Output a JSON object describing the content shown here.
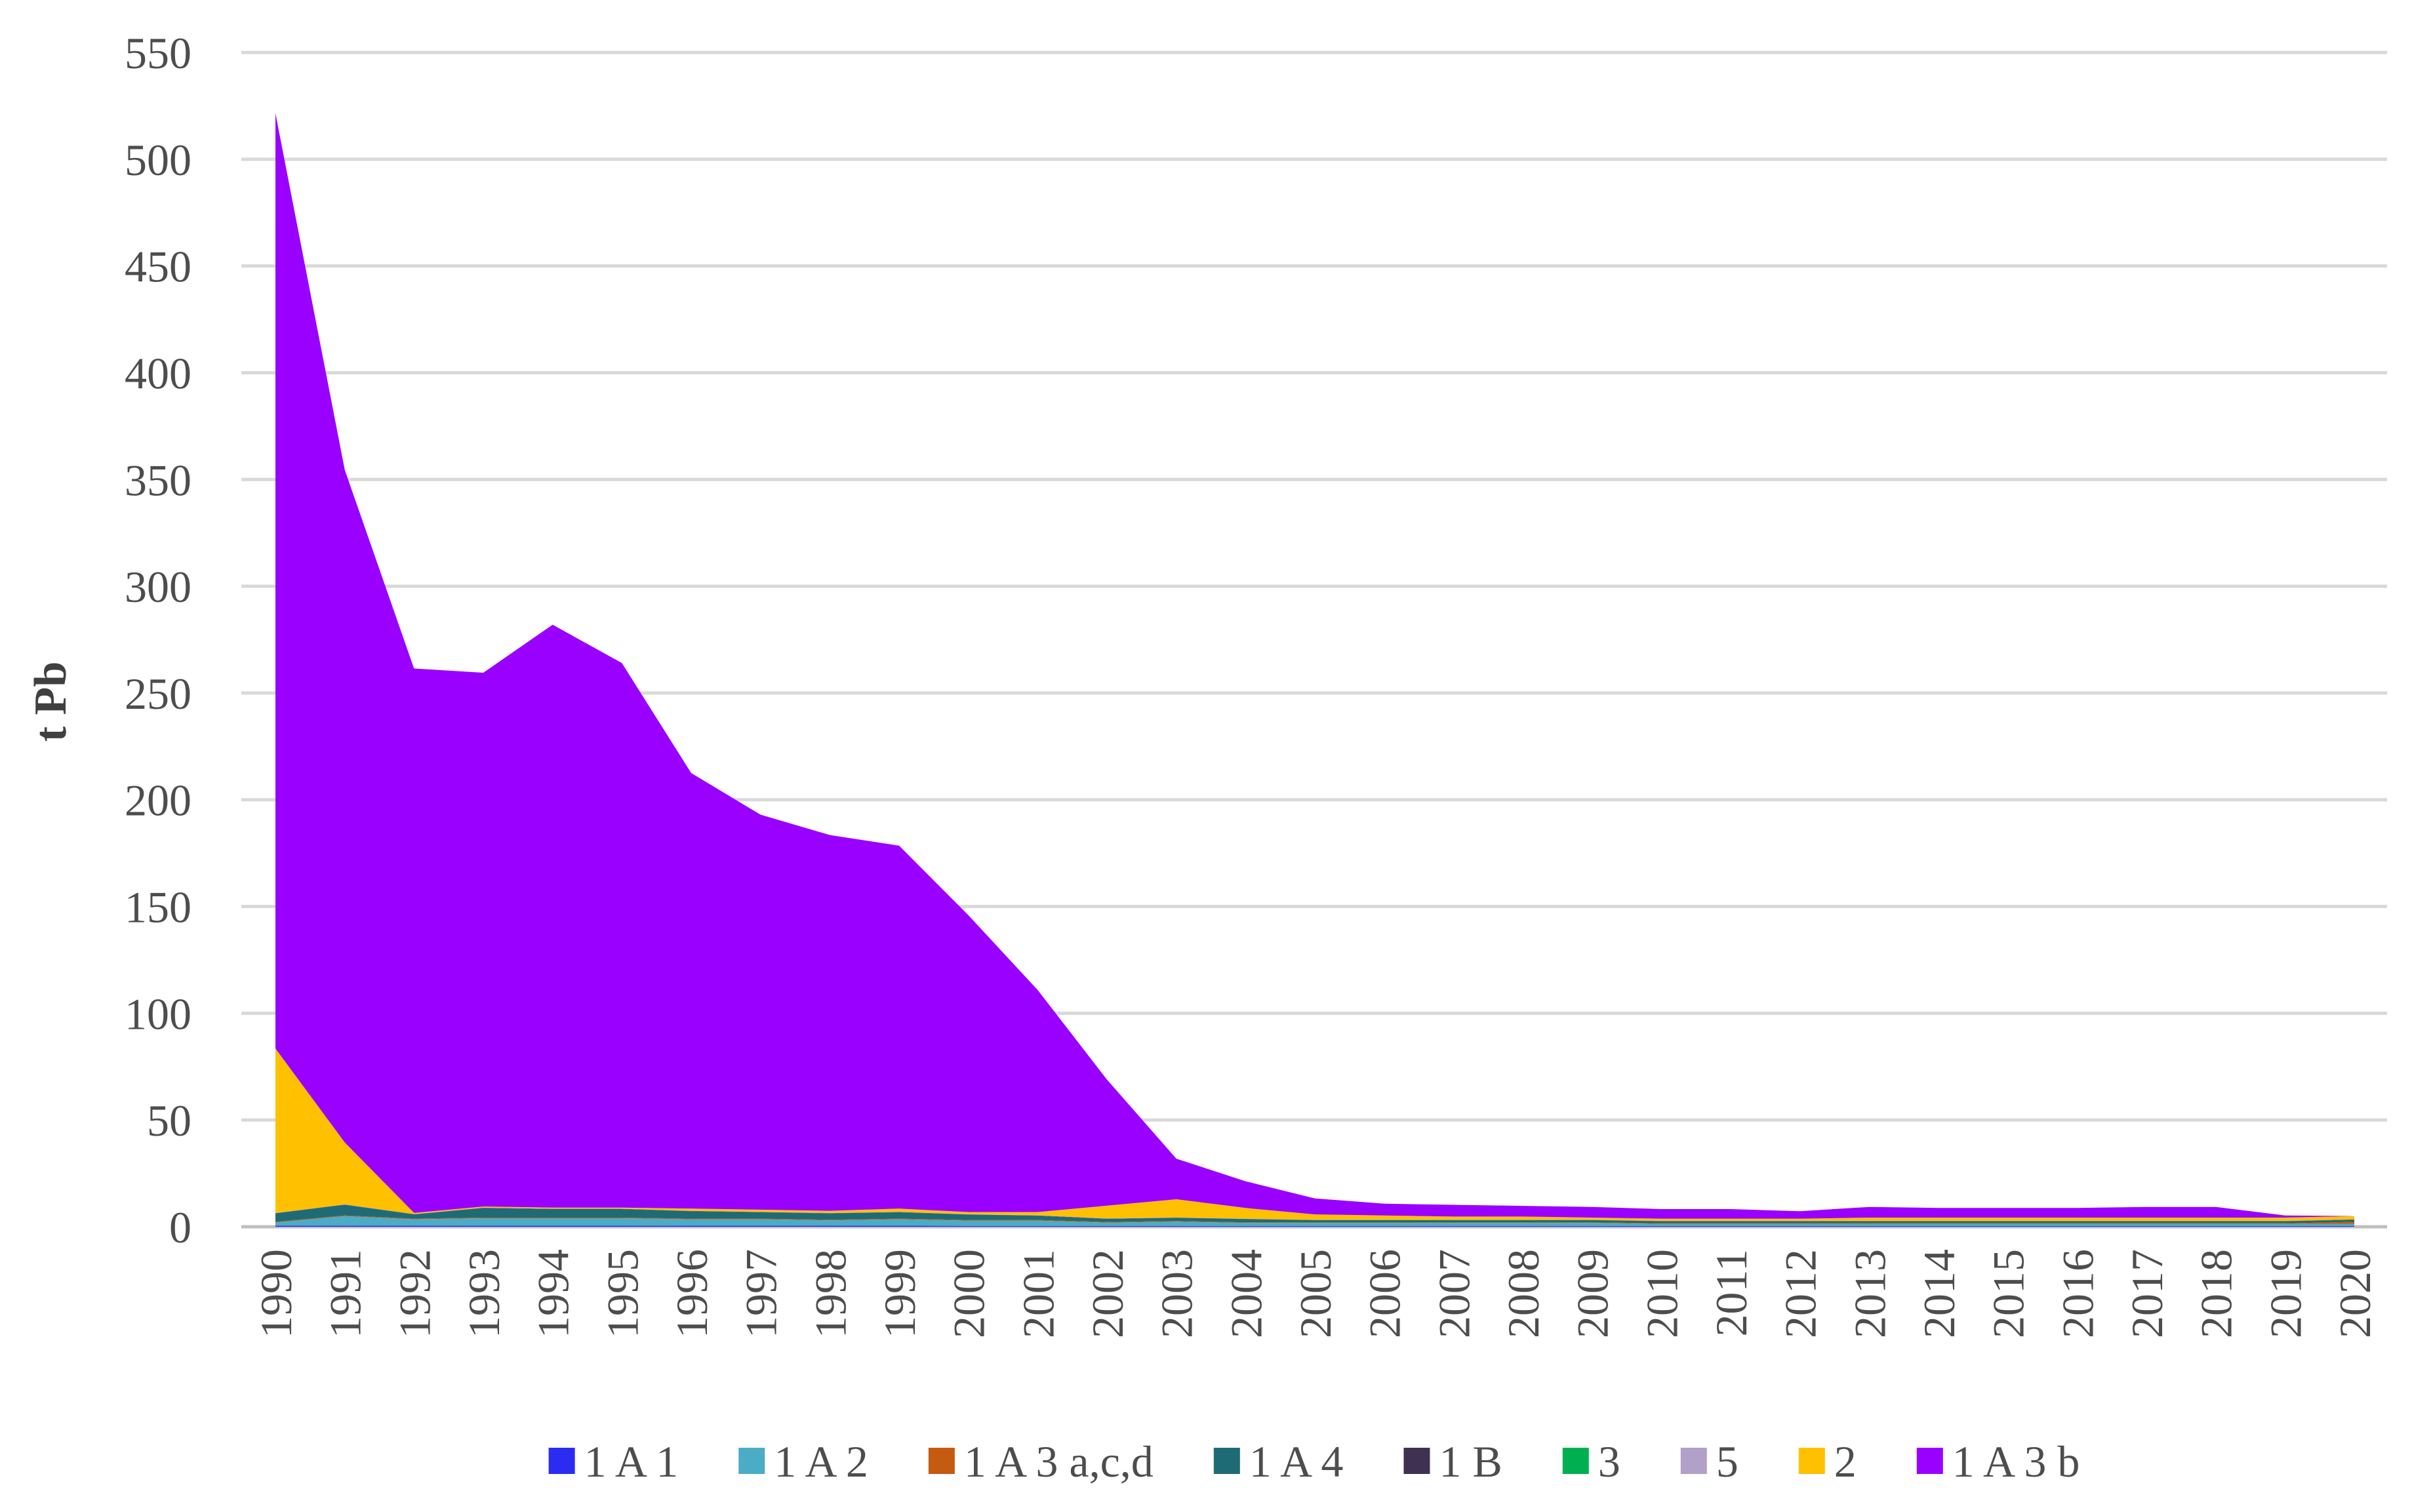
{
  "chart_data": {
    "type": "area",
    "stacked": true,
    "title": "",
    "xlabel": "",
    "ylabel": "t Pb",
    "ylim": [
      0,
      550
    ],
    "yticks": [
      0,
      50,
      100,
      150,
      200,
      250,
      300,
      350,
      400,
      450,
      500,
      550
    ],
    "grid": true,
    "legend_position": "bottom",
    "x": [
      "1990",
      "1991",
      "1992",
      "1993",
      "1994",
      "1995",
      "1996",
      "1997",
      "1998",
      "1999",
      "2000",
      "2001",
      "2002",
      "2003",
      "2004",
      "2005",
      "2006",
      "2007",
      "2008",
      "2009",
      "2010",
      "2011",
      "2012",
      "2013",
      "2014",
      "2015",
      "2016",
      "2017",
      "2018",
      "2019",
      "2020"
    ],
    "series": [
      {
        "name": "1 A 1",
        "color": "#2b2bf2",
        "values": [
          0.5,
          0.5,
          0.5,
          0.5,
          0.5,
          0.5,
          0.5,
          0.5,
          0.5,
          0.5,
          0.4,
          0.4,
          0.4,
          0.4,
          0.3,
          0.3,
          0.3,
          0.3,
          0.3,
          0.3,
          0.3,
          0.3,
          0.3,
          0.3,
          0.3,
          0.3,
          0.3,
          0.3,
          0.3,
          0.3,
          0.3
        ]
      },
      {
        "name": "1 A 2",
        "color": "#4bacc6",
        "values": [
          1.5,
          4.5,
          3.0,
          3.5,
          3.5,
          3.5,
          3.0,
          3.0,
          2.5,
          3.0,
          2.5,
          2.5,
          1.5,
          2.0,
          1.5,
          1.5,
          1.5,
          1.5,
          1.5,
          1.5,
          1.0,
          1.0,
          1.0,
          1.0,
          1.0,
          1.0,
          1.0,
          1.0,
          1.0,
          1.0,
          1.0
        ]
      },
      {
        "name": "1 A 3 a,c,d",
        "color": "#c55a11",
        "values": [
          0.3,
          0.3,
          0.3,
          0.3,
          0.3,
          0.3,
          0.3,
          0.3,
          0.3,
          0.3,
          0.3,
          0.3,
          0.3,
          0.3,
          0.3,
          0.3,
          0.3,
          0.3,
          0.3,
          0.3,
          0.3,
          0.3,
          0.3,
          0.3,
          0.3,
          0.3,
          0.3,
          0.3,
          0.3,
          0.3,
          1.0
        ]
      },
      {
        "name": "1 A 4",
        "color": "#1f6b75",
        "values": [
          4.0,
          5.0,
          2.0,
          4.5,
          4.0,
          4.0,
          3.5,
          3.0,
          3.0,
          3.0,
          2.5,
          2.0,
          1.5,
          1.5,
          1.5,
          1.0,
          1.0,
          1.0,
          1.0,
          1.0,
          1.0,
          1.0,
          1.0,
          1.0,
          1.0,
          1.0,
          1.0,
          1.0,
          1.0,
          1.0,
          1.0
        ]
      },
      {
        "name": "1 B",
        "color": "#3f3151",
        "values": [
          0.1,
          0.1,
          0.1,
          0.1,
          0.1,
          0.1,
          0.1,
          0.1,
          0.1,
          0.1,
          0.1,
          0.1,
          0.1,
          0.1,
          0.1,
          0.1,
          0.1,
          0.1,
          0.1,
          0.1,
          0.1,
          0.1,
          0.1,
          0.1,
          0.1,
          0.1,
          0.1,
          0.1,
          0.1,
          0.1,
          0.1
        ]
      },
      {
        "name": "3",
        "color": "#00b050",
        "values": [
          0,
          0,
          0,
          0,
          0,
          0,
          0,
          0,
          0,
          0,
          0,
          0,
          0,
          0,
          0,
          0,
          0,
          0,
          0,
          0,
          0,
          0,
          0,
          0,
          0,
          0,
          0,
          0,
          0,
          0,
          0
        ]
      },
      {
        "name": "5",
        "color": "#b1a0c7",
        "values": [
          0.1,
          0.1,
          0.1,
          0.1,
          0.1,
          0.1,
          0.1,
          0.1,
          0.1,
          0.1,
          0.1,
          0.1,
          0.1,
          0.1,
          0.1,
          0.1,
          0.1,
          0.1,
          0.1,
          0.1,
          0.1,
          0.1,
          0.1,
          0.1,
          0.1,
          0.1,
          0.1,
          0.1,
          0.1,
          0.1,
          0.1
        ]
      },
      {
        "name": "2",
        "color": "#ffc000",
        "values": [
          77,
          29,
          0.5,
          0.5,
          0.5,
          0.5,
          1.0,
          1.0,
          1.0,
          1.5,
          1.0,
          1.5,
          6.0,
          8.5,
          5.0,
          2.5,
          2.0,
          1.5,
          1.5,
          1.0,
          1.0,
          1.0,
          1.0,
          1.5,
          1.5,
          1.5,
          1.5,
          1.5,
          1.5,
          1.5,
          1.5
        ]
      },
      {
        "name": "1 A 3 b",
        "color": "#9900ff",
        "values": [
          438,
          315,
          255,
          250,
          273,
          255,
          204,
          185,
          176,
          170,
          139,
          104,
          59,
          19,
          12.5,
          7.5,
          5.5,
          5.5,
          5,
          5,
          4.5,
          4.5,
          3.5,
          5,
          4.5,
          4.5,
          4.5,
          5,
          5,
          1,
          0
        ]
      }
    ]
  }
}
